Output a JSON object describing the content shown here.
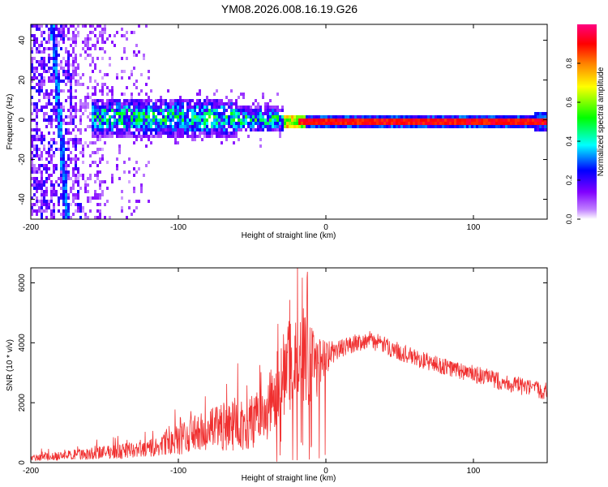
{
  "figure_title": "YM08.2026.008.16.19.G26",
  "chart_data": [
    {
      "type": "heatmap",
      "title": "",
      "xlabel": "Height of straight line (km)",
      "ylabel": "Frequency (Hz)",
      "xlim": [
        -200,
        150
      ],
      "ylim": [
        -50,
        48
      ],
      "xticks": [
        -200,
        -100,
        0,
        100
      ],
      "yticks": [
        -40,
        -20,
        0,
        20,
        40
      ],
      "xtick_labels": [
        "-200",
        "-100",
        "0",
        "100"
      ],
      "ytick_labels": [
        "-40",
        "-20",
        "0",
        "20",
        "40"
      ],
      "colorbar": {
        "label": "Normalized spectral amplitude",
        "range": [
          0,
          1
        ],
        "ticks": [
          0.0,
          0.2,
          0.4,
          0.6,
          0.8
        ],
        "tick_labels": [
          "0.0",
          "0.2",
          "0.4",
          "0.6",
          "0.8"
        ],
        "colors": [
          "#ffffff",
          "#a000ff",
          "#0000ff",
          "#00ffff",
          "#00ff00",
          "#ffff00",
          "#ff8000",
          "#ff0000",
          "#ff0080"
        ]
      },
      "features": [
        {
          "name": "diagonal streak",
          "x": [
            -186,
            -176
          ],
          "y": [
            48,
            -50
          ],
          "amplitude": 0.3
        },
        {
          "name": "central band",
          "x": [
            -160,
            -30
          ],
          "y_center": 2,
          "y_spread": 5,
          "amplitude": 0.45
        },
        {
          "name": "carrier line",
          "x": [
            -20,
            150
          ],
          "y": 0,
          "amplitude": 0.95
        }
      ]
    },
    {
      "type": "line",
      "title": "",
      "xlabel": "Height of straight line (km)",
      "ylabel": "SNR (10 * v/v)",
      "xlim": [
        -200,
        150
      ],
      "ylim": [
        0,
        6500
      ],
      "xticks": [
        -200,
        -100,
        0,
        100
      ],
      "yticks": [
        0,
        2000,
        4000,
        6000
      ],
      "xtick_labels": [
        "-200",
        "-100",
        "0",
        "100"
      ],
      "ytick_labels": [
        "0",
        "2000",
        "4000",
        "6000"
      ],
      "series": [
        {
          "name": "SNR",
          "color": "#f03030",
          "x": [
            -200,
            -180,
            -160,
            -140,
            -120,
            -100,
            -90,
            -80,
            -70,
            -60,
            -50,
            -40,
            -35,
            -30,
            -25,
            -20,
            -15,
            -10,
            -5,
            0,
            5,
            10,
            20,
            30,
            40,
            60,
            80,
            100,
            120,
            140,
            150
          ],
          "y": [
            150,
            230,
            300,
            380,
            450,
            750,
            950,
            1050,
            1200,
            1250,
            1300,
            1700,
            2300,
            2900,
            3200,
            3400,
            3500,
            3300,
            3200,
            3500,
            3700,
            3800,
            4000,
            4100,
            3900,
            3500,
            3200,
            2950,
            2700,
            2450,
            2400
          ],
          "noise": [
            100,
            150,
            200,
            250,
            300,
            500,
            600,
            700,
            800,
            850,
            900,
            1000,
            1200,
            1400,
            1500,
            1600,
            1700,
            1500,
            1000,
            600,
            400,
            300,
            300,
            300,
            300,
            300,
            300,
            300,
            300,
            300,
            300
          ]
        }
      ]
    }
  ]
}
